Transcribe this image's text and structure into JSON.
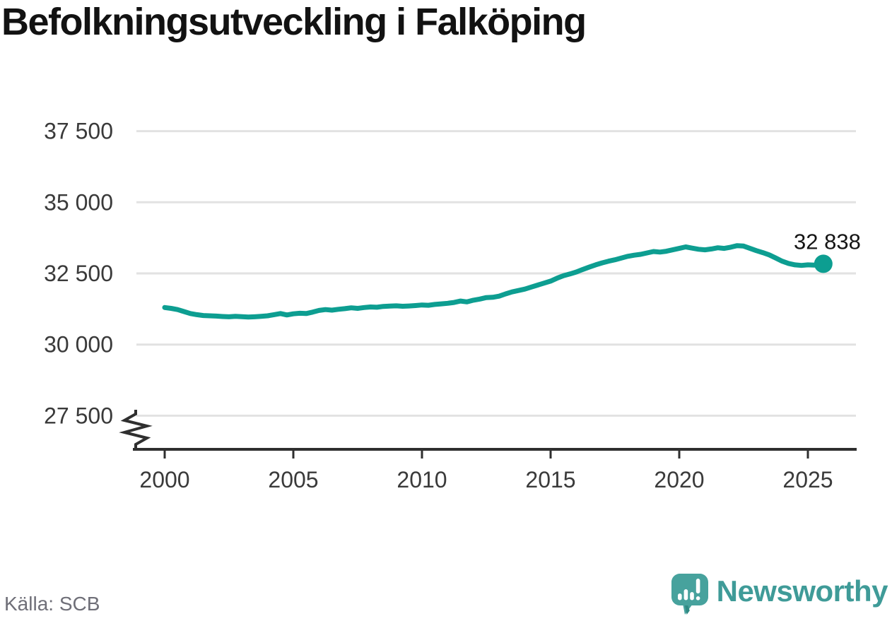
{
  "title": "Befolkningsutveckling i Falköping",
  "source": "Källa: SCB",
  "brand": {
    "name": "Newsworthy"
  },
  "colors": {
    "series": "#0d9e91",
    "grid": "#e2e2e2",
    "axis": "#2f2f2f",
    "axis_label": "#3a3a3a",
    "title_text": "#121212",
    "source_text": "#6f6f78",
    "annotation_text": "#151515",
    "brand_teal": "#3f9b98",
    "logo_bubble": "#47a29d",
    "logo_bubble_shade": "#2f8a84"
  },
  "annotation": {
    "label": "32 838",
    "value": 32838
  },
  "chart_data": {
    "type": "line",
    "title": "Befolkningsutveckling i Falköping",
    "xlabel": "",
    "ylabel": "",
    "grid": "horizontal",
    "axis_break": true,
    "x_range": [
      2000,
      2025.6
    ],
    "x_ticks": [
      2000,
      2005,
      2010,
      2015,
      2020,
      2025
    ],
    "y_ticks": [
      {
        "value": 37500,
        "label": "37 500"
      },
      {
        "value": 35000,
        "label": "35 000"
      },
      {
        "value": 32500,
        "label": "32 500"
      },
      {
        "value": 30000,
        "label": "30 000"
      },
      {
        "value": 27500,
        "label": "27 500"
      }
    ],
    "series": [
      {
        "color": "#0d9e91",
        "end_label": "32 838",
        "end_value": 32838,
        "points": [
          [
            2000.0,
            31300
          ],
          [
            2000.25,
            31270
          ],
          [
            2000.5,
            31230
          ],
          [
            2000.75,
            31160
          ],
          [
            2001.0,
            31090
          ],
          [
            2001.25,
            31050
          ],
          [
            2001.5,
            31020
          ],
          [
            2001.75,
            31010
          ],
          [
            2002.0,
            31000
          ],
          [
            2002.25,
            30985
          ],
          [
            2002.5,
            30975
          ],
          [
            2002.75,
            30990
          ],
          [
            2003.0,
            30980
          ],
          [
            2003.25,
            30965
          ],
          [
            2003.5,
            30975
          ],
          [
            2003.75,
            30990
          ],
          [
            2004.0,
            31010
          ],
          [
            2004.25,
            31050
          ],
          [
            2004.5,
            31090
          ],
          [
            2004.75,
            31040
          ],
          [
            2005.0,
            31080
          ],
          [
            2005.25,
            31100
          ],
          [
            2005.5,
            31090
          ],
          [
            2005.75,
            31140
          ],
          [
            2006.0,
            31200
          ],
          [
            2006.25,
            31230
          ],
          [
            2006.5,
            31210
          ],
          [
            2006.75,
            31240
          ],
          [
            2007.0,
            31260
          ],
          [
            2007.25,
            31290
          ],
          [
            2007.5,
            31270
          ],
          [
            2007.75,
            31300
          ],
          [
            2008.0,
            31320
          ],
          [
            2008.25,
            31310
          ],
          [
            2008.5,
            31340
          ],
          [
            2008.75,
            31350
          ],
          [
            2009.0,
            31360
          ],
          [
            2009.25,
            31345
          ],
          [
            2009.5,
            31355
          ],
          [
            2009.75,
            31370
          ],
          [
            2010.0,
            31390
          ],
          [
            2010.25,
            31380
          ],
          [
            2010.5,
            31410
          ],
          [
            2010.75,
            31430
          ],
          [
            2011.0,
            31450
          ],
          [
            2011.25,
            31480
          ],
          [
            2011.5,
            31530
          ],
          [
            2011.75,
            31500
          ],
          [
            2012.0,
            31560
          ],
          [
            2012.25,
            31600
          ],
          [
            2012.5,
            31650
          ],
          [
            2012.75,
            31660
          ],
          [
            2013.0,
            31700
          ],
          [
            2013.25,
            31780
          ],
          [
            2013.5,
            31850
          ],
          [
            2013.75,
            31900
          ],
          [
            2014.0,
            31950
          ],
          [
            2014.25,
            32020
          ],
          [
            2014.5,
            32090
          ],
          [
            2014.75,
            32160
          ],
          [
            2015.0,
            32230
          ],
          [
            2015.25,
            32330
          ],
          [
            2015.5,
            32420
          ],
          [
            2015.75,
            32480
          ],
          [
            2016.0,
            32550
          ],
          [
            2016.25,
            32640
          ],
          [
            2016.5,
            32720
          ],
          [
            2016.75,
            32800
          ],
          [
            2017.0,
            32870
          ],
          [
            2017.25,
            32930
          ],
          [
            2017.5,
            32980
          ],
          [
            2017.75,
            33040
          ],
          [
            2018.0,
            33100
          ],
          [
            2018.25,
            33140
          ],
          [
            2018.5,
            33170
          ],
          [
            2018.75,
            33220
          ],
          [
            2019.0,
            33270
          ],
          [
            2019.25,
            33250
          ],
          [
            2019.5,
            33280
          ],
          [
            2019.75,
            33330
          ],
          [
            2020.0,
            33380
          ],
          [
            2020.25,
            33430
          ],
          [
            2020.5,
            33390
          ],
          [
            2020.75,
            33350
          ],
          [
            2021.0,
            33330
          ],
          [
            2021.25,
            33360
          ],
          [
            2021.5,
            33400
          ],
          [
            2021.75,
            33380
          ],
          [
            2022.0,
            33420
          ],
          [
            2022.25,
            33475
          ],
          [
            2022.5,
            33460
          ],
          [
            2022.75,
            33380
          ],
          [
            2023.0,
            33300
          ],
          [
            2023.25,
            33230
          ],
          [
            2023.5,
            33150
          ],
          [
            2023.75,
            33040
          ],
          [
            2024.0,
            32930
          ],
          [
            2024.25,
            32850
          ],
          [
            2024.5,
            32800
          ],
          [
            2024.75,
            32780
          ],
          [
            2025.0,
            32800
          ],
          [
            2025.25,
            32790
          ],
          [
            2025.6,
            32838
          ]
        ]
      }
    ]
  }
}
